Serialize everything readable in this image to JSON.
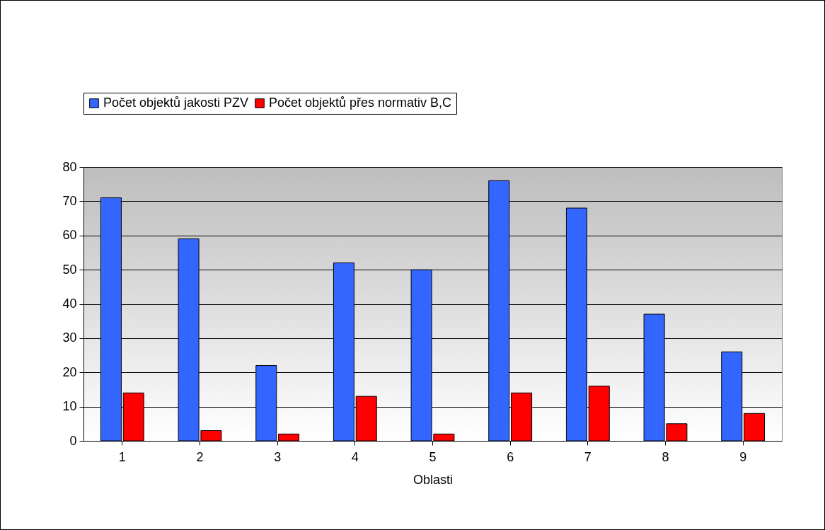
{
  "chart_data": {
    "type": "bar",
    "xlabel": "Oblasti",
    "categories": [
      "1",
      "2",
      "3",
      "4",
      "5",
      "6",
      "7",
      "8",
      "9"
    ],
    "series": [
      {
        "name": "Počet objektů jakosti PZV",
        "color": "#3366ff",
        "values": [
          71,
          59,
          22,
          52,
          50,
          76,
          68,
          37,
          26
        ]
      },
      {
        "name": "Počet objektů přes normativ B,C",
        "color": "#ff0000",
        "values": [
          14,
          3,
          2,
          13,
          2,
          14,
          16,
          5,
          8
        ]
      }
    ],
    "ylim": [
      0,
      80
    ],
    "yticks": [
      0,
      10,
      20,
      30,
      40,
      50,
      60,
      70,
      80
    ],
    "grid": "y",
    "legend": "top"
  }
}
